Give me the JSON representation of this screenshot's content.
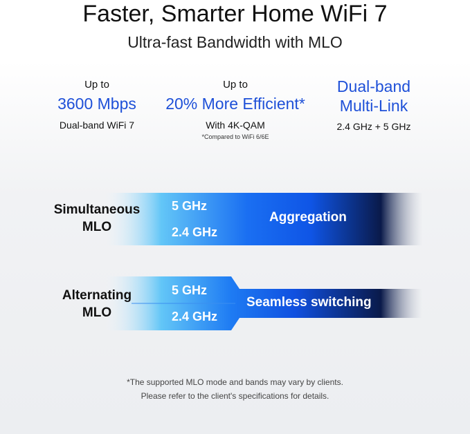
{
  "header": {
    "title": "Faster, Smarter Home WiFi 7",
    "subtitle": "Ultra-fast Bandwidth with MLO"
  },
  "stats": [
    {
      "prefix": "Up to",
      "value": "3600 Mbps",
      "detail": "Dual-band WiFi 7"
    },
    {
      "prefix": "Up to",
      "value": "20% More Efficient*",
      "detail": "With 4K-QAM",
      "note": "*Compared to WiFi 6/6E"
    },
    {
      "value_line1": "Dual-band",
      "value_line2": "Multi-Link",
      "detail": "2.4 GHz + 5 GHz"
    }
  ],
  "modes": [
    {
      "label_line1": "Simultaneous",
      "label_line2": "MLO",
      "band_a": "5 GHz",
      "band_b": "2.4 GHz",
      "result": "Aggregation"
    },
    {
      "label_line1": "Alternating",
      "label_line2": "MLO",
      "band_a": "5 GHz",
      "band_b": "2.4 GHz",
      "result": "Seamless switching"
    }
  ],
  "footnote": {
    "line1": "*The supported MLO mode and bands may vary by clients.",
    "line2": "Please refer to the client's specifications for details."
  },
  "colors": {
    "accent": "#1e50d8",
    "band_blue": "#1566f0",
    "band_dark": "#0a1a4a"
  }
}
